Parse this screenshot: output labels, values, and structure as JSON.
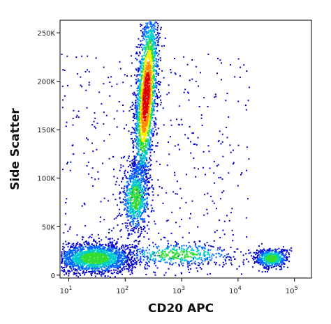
{
  "chart_data": {
    "type": "scatter",
    "subtype": "flow-cytometry-density-dot-plot",
    "xlabel": "CD20 APC",
    "ylabel": "Side Scatter",
    "x_scale": "log",
    "y_scale": "linear",
    "xlim": [
      7,
      200000
    ],
    "ylim": [
      -3000,
      263000
    ],
    "x_ticks": [
      {
        "value": 10,
        "base": "10",
        "exp": "1"
      },
      {
        "value": 100,
        "base": "10",
        "exp": "2"
      },
      {
        "value": 1000,
        "base": "10",
        "exp": "3"
      },
      {
        "value": 10000,
        "base": "10",
        "exp": "4"
      },
      {
        "value": 100000,
        "base": "10",
        "exp": "5"
      }
    ],
    "y_ticks": [
      {
        "value": 0,
        "label": "0"
      },
      {
        "value": 50000,
        "label": "50K"
      },
      {
        "value": 100000,
        "label": "100K"
      },
      {
        "value": 150000,
        "label": "150K"
      },
      {
        "value": 200000,
        "label": "200K"
      },
      {
        "value": 250000,
        "label": "250K"
      }
    ],
    "color_scale": [
      "#0000cc",
      "#0066ff",
      "#00cccc",
      "#33dd33",
      "#ffee00",
      "#ff8800",
      "#dd0000"
    ],
    "populations": [
      {
        "x": 230,
        "y": 185000,
        "x_spread_decades": 0.09,
        "y_spread": 45000,
        "weight": 0.36
      },
      {
        "x": 150,
        "y": 80000,
        "x_spread_decades": 0.13,
        "y_spread": 18000,
        "weight": 0.12
      },
      {
        "x": 28,
        "y": 18000,
        "x_spread_decades": 0.35,
        "y_spread": 8000,
        "weight": 0.3
      },
      {
        "x": 800,
        "y": 22000,
        "x_spread_decades": 0.55,
        "y_spread": 6000,
        "weight": 0.07
      },
      {
        "x": 38000,
        "y": 18000,
        "x_spread_decades": 0.15,
        "y_spread": 5000,
        "weight": 0.08
      }
    ]
  }
}
